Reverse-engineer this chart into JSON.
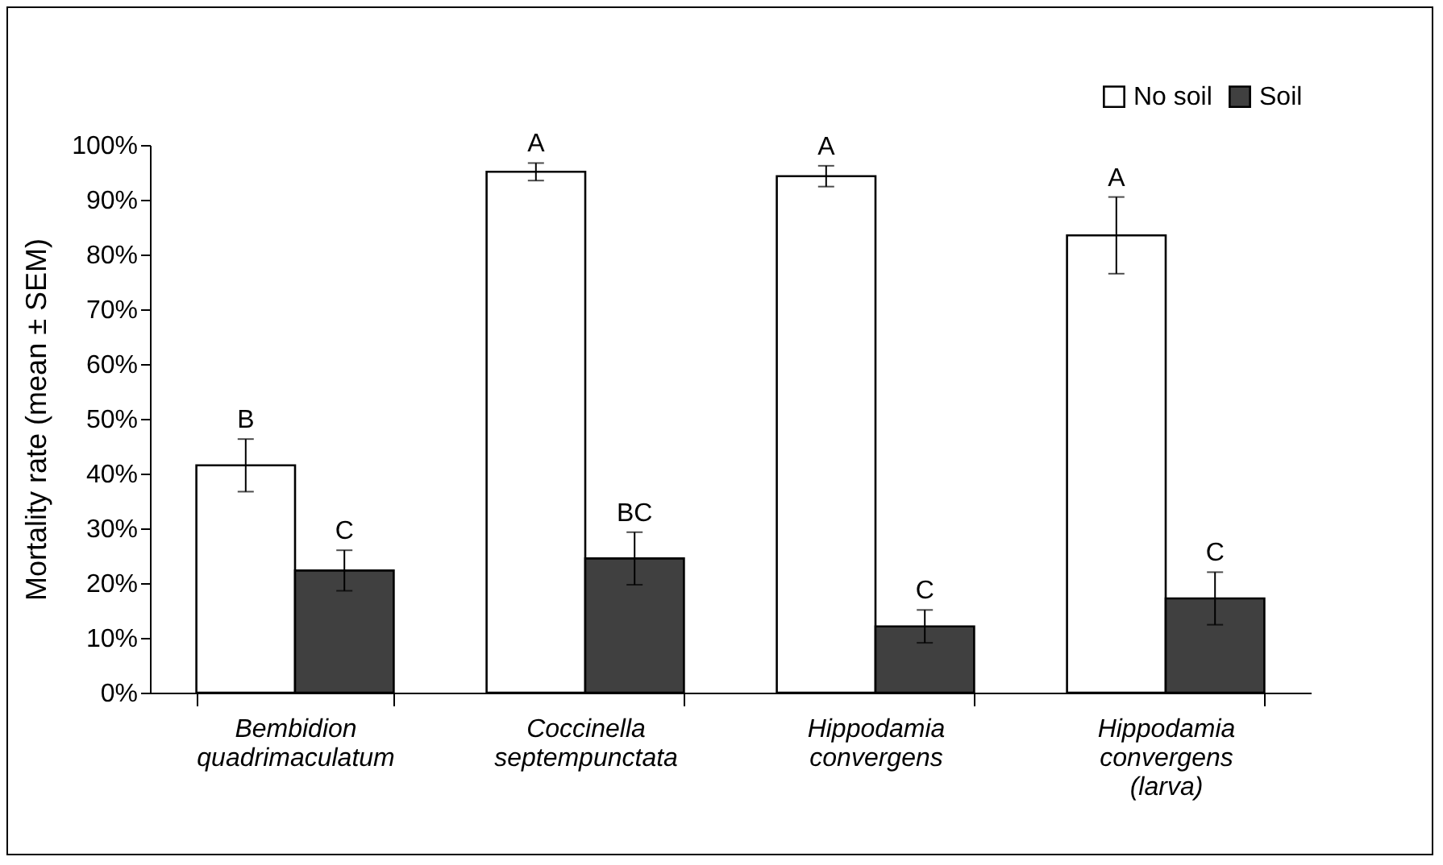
{
  "chart_data": {
    "type": "bar",
    "ylabel": "Mortality rate (mean ± SEM)",
    "categories": [
      "Bembidion quadrimaculatum",
      "Coccinella septempunctata",
      "Hippodamia convergens",
      "Hippodamia convergens (larva)"
    ],
    "series": [
      {
        "name": "No soil",
        "color": "#ffffff",
        "values": [
          41.5,
          95.1,
          94.3,
          83.5
        ],
        "errors": [
          4.8,
          1.6,
          1.9,
          7
        ]
      },
      {
        "name": "Soil",
        "color": "#404040",
        "values": [
          22.3,
          24.5,
          12.1,
          17.2
        ],
        "errors": [
          3.7,
          4.8,
          3,
          4.8
        ]
      }
    ],
    "ylim": [
      0,
      100
    ],
    "yticks": [
      {
        "value": 0,
        "label": "0%"
      },
      {
        "value": 10,
        "label": "10%"
      },
      {
        "value": 20,
        "label": "20%"
      },
      {
        "value": 30,
        "label": "30%"
      },
      {
        "value": 40,
        "label": "40%"
      },
      {
        "value": 50,
        "label": "50%"
      },
      {
        "value": 60,
        "label": "60%"
      },
      {
        "value": 70,
        "label": "70%"
      },
      {
        "value": 80,
        "label": "80%"
      },
      {
        "value": 90,
        "label": "90%"
      },
      {
        "value": 100,
        "label": "100%"
      }
    ],
    "annotations": [
      "B",
      "C",
      "A",
      "BC",
      "A",
      "C",
      "A",
      "C"
    ],
    "legend": "top right",
    "grid": false
  }
}
